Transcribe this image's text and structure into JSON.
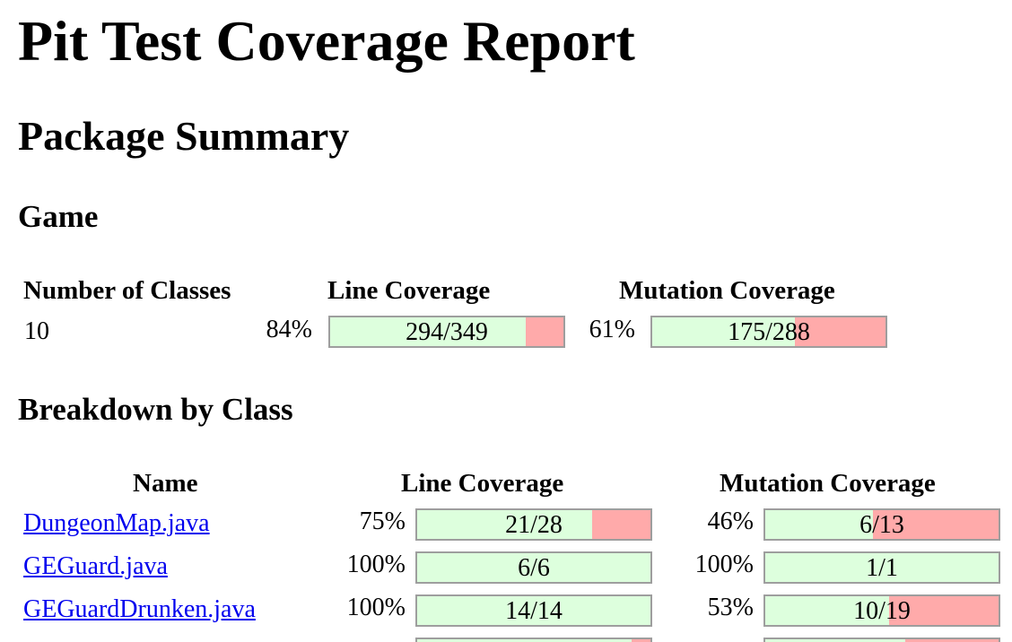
{
  "page_title": "Pit Test Coverage Report",
  "section_title": "Package Summary",
  "package_name": "Game",
  "summary": {
    "headers": {
      "classes": "Number of Classes",
      "line": "Line Coverage",
      "mutation": "Mutation Coverage"
    },
    "classes": "10",
    "line_pct": "84%",
    "line_ratio": "294/349",
    "line_fraction": 0.84,
    "mutation_pct": "61%",
    "mutation_ratio": "175/288",
    "mutation_fraction": 0.61
  },
  "breakdown": {
    "title": "Breakdown by Class",
    "headers": {
      "name": "Name",
      "line": "Line Coverage",
      "mutation": "Mutation Coverage"
    },
    "rows": [
      {
        "name": "DungeonMap.java",
        "line_pct": "75%",
        "line_ratio": "21/28",
        "line_fraction": 0.75,
        "mutation_pct": "46%",
        "mutation_ratio": "6/13",
        "mutation_fraction": 0.46
      },
      {
        "name": "GEGuard.java",
        "line_pct": "100%",
        "line_ratio": "6/6",
        "line_fraction": 1.0,
        "mutation_pct": "100%",
        "mutation_ratio": "1/1",
        "mutation_fraction": 1.0
      },
      {
        "name": "GEGuardDrunken.java",
        "line_pct": "100%",
        "line_ratio": "14/14",
        "line_fraction": 1.0,
        "mutation_pct": "53%",
        "mutation_ratio": "10/19",
        "mutation_fraction": 0.53
      }
    ],
    "partial_row": {
      "line_fraction": 0.92,
      "mutation_fraction": 0.6
    }
  },
  "colors": {
    "covered": "#ddffdd",
    "uncovered": "#ffaaaa",
    "bar_border": "#9e9e9e",
    "link": "#0000ee"
  }
}
